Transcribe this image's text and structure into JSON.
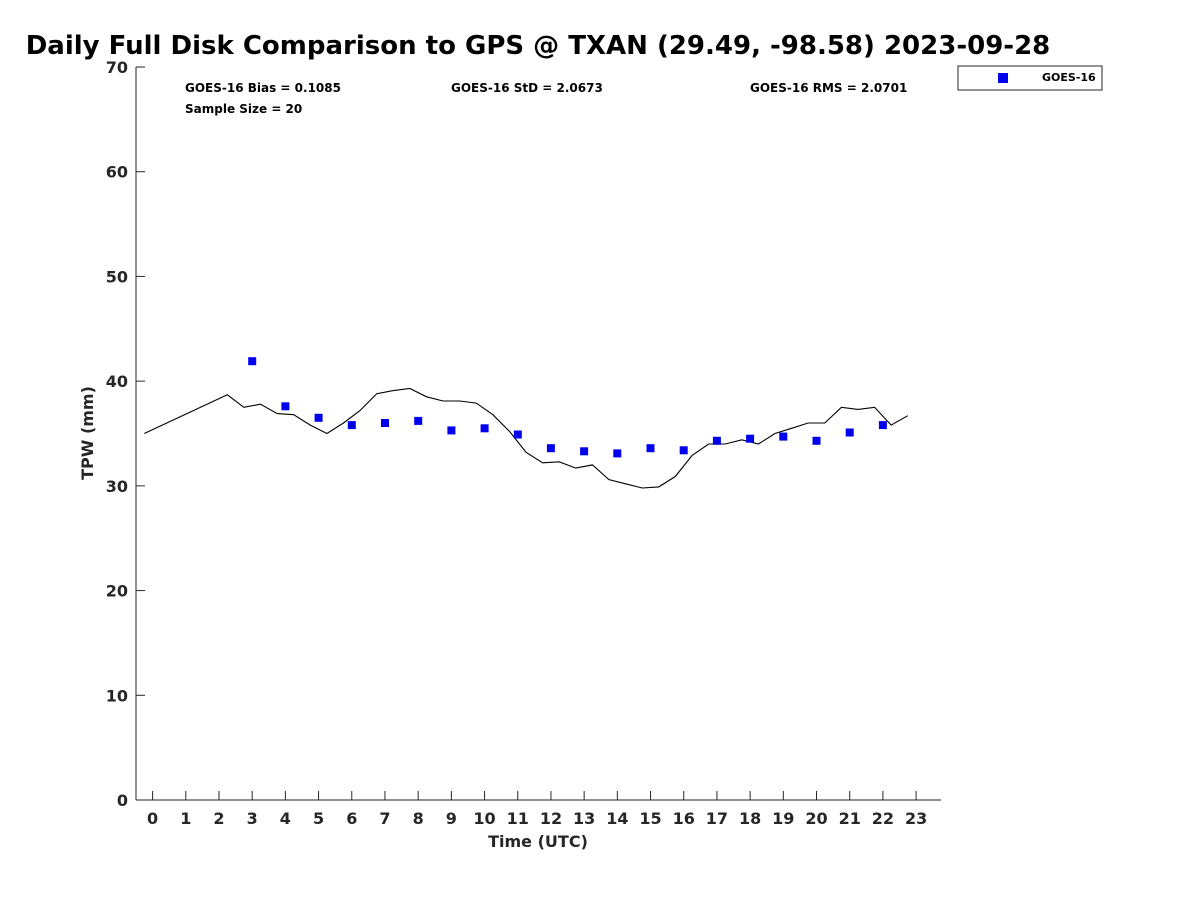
{
  "chart_data": {
    "type": "scatter",
    "title": "Daily Full Disk Comparison to GPS @ TXAN (29.49, -98.58) 2023-09-28",
    "xlabel": "Time (UTC)",
    "ylabel": "TPW (mm)",
    "xlim": [
      -0.5,
      23.75
    ],
    "ylim": [
      0,
      70
    ],
    "xticks": [
      0,
      1,
      2,
      3,
      4,
      5,
      6,
      7,
      8,
      9,
      10,
      11,
      12,
      13,
      14,
      15,
      16,
      17,
      18,
      19,
      20,
      21,
      22,
      23
    ],
    "yticks": [
      0,
      10,
      20,
      30,
      40,
      50,
      60,
      70
    ],
    "grid": false,
    "legend_position": "top-right",
    "stats": {
      "bias": "GOES-16 Bias = 0.1085",
      "std": "GOES-16 StD = 2.0673",
      "rms": "GOES-16 RMS = 2.0701",
      "sample": "Sample Size = 20"
    },
    "series": [
      {
        "name": "GOES-16",
        "kind": "scatter",
        "color": "#0000ee",
        "marker": "square",
        "x": [
          3,
          4,
          5,
          6,
          7,
          8,
          9,
          10,
          11,
          12,
          13,
          14,
          15,
          16,
          17,
          18,
          19,
          20,
          21,
          22
        ],
        "y": [
          41.9,
          37.6,
          36.5,
          35.8,
          36.0,
          36.2,
          35.3,
          35.5,
          34.9,
          33.6,
          33.3,
          33.1,
          33.6,
          33.4,
          34.3,
          34.5,
          34.7,
          34.3,
          35.1,
          35.8
        ]
      },
      {
        "kind": "line",
        "color": "#000000",
        "x": [
          -0.25,
          2.25,
          2.75,
          3.25,
          3.75,
          4.25,
          4.75,
          5.25,
          5.75,
          6.25,
          6.75,
          7.25,
          7.75,
          8.25,
          8.75,
          9.25,
          9.75,
          10.25,
          10.75,
          11.25,
          11.75,
          12.25,
          12.75,
          13.25,
          13.75,
          14.25,
          14.75,
          15.25,
          15.75,
          16.25,
          16.75,
          17.25,
          17.75,
          18.25,
          18.75,
          19.25,
          19.75,
          20.25,
          20.75,
          21.25,
          21.75,
          22.25,
          22.75
        ],
        "y": [
          35.0,
          38.7,
          37.5,
          37.8,
          36.9,
          36.8,
          35.8,
          35.0,
          36.0,
          37.2,
          38.8,
          39.1,
          39.3,
          38.5,
          38.1,
          38.1,
          37.9,
          36.8,
          35.2,
          33.2,
          32.2,
          32.3,
          31.7,
          32.0,
          30.6,
          30.2,
          29.8,
          29.9,
          30.9,
          32.9,
          34.0,
          34.0,
          34.4,
          34.0,
          35.0,
          35.5,
          36.0,
          36.0,
          37.5,
          37.3,
          37.5,
          35.8,
          36.7
        ]
      }
    ]
  }
}
